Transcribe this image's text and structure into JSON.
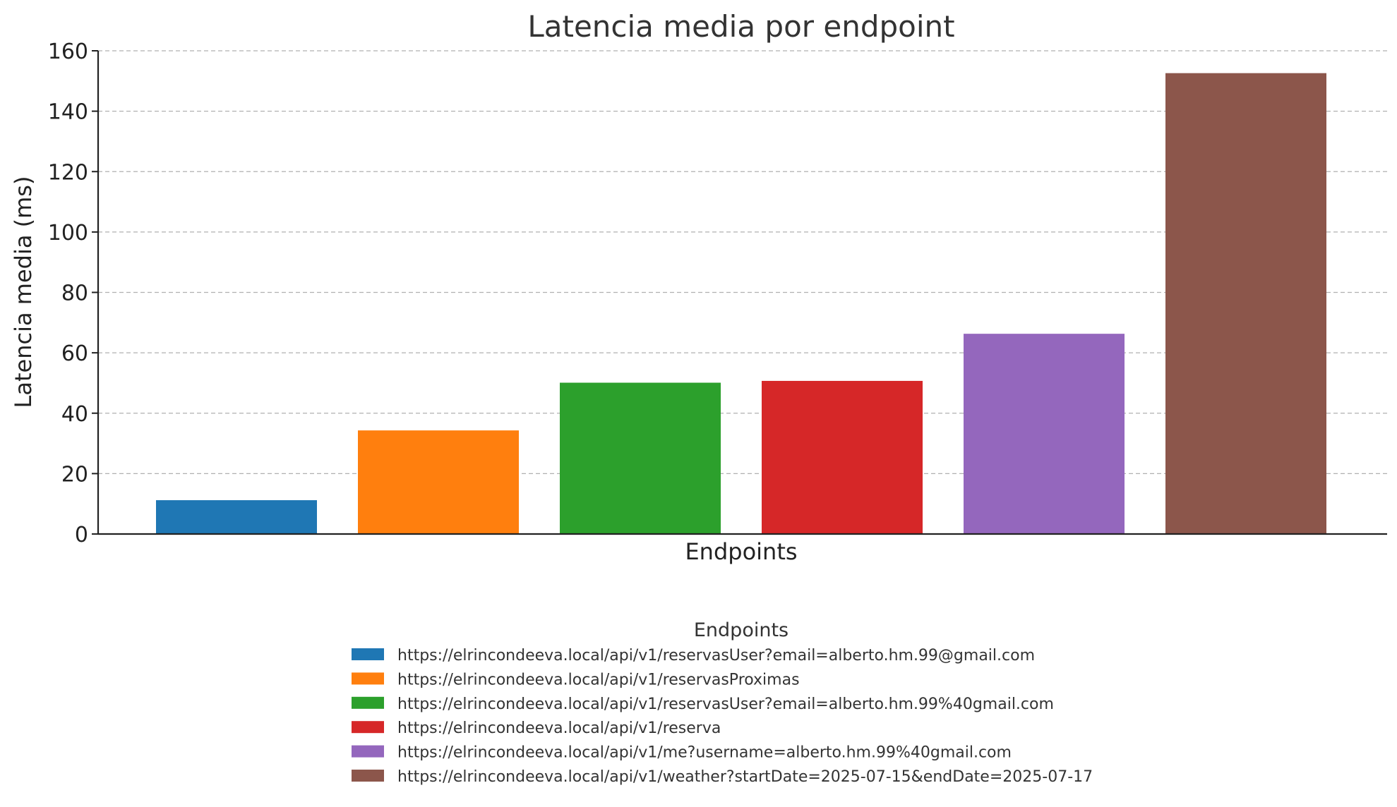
{
  "chart_data": {
    "type": "bar",
    "title": "Latencia media por endpoint",
    "xlabel": "Endpoints",
    "ylabel": "Latencia media (ms)",
    "ylim": [
      0,
      160
    ],
    "yticks": [
      0,
      20,
      40,
      60,
      80,
      100,
      120,
      140,
      160
    ],
    "grid": "y-dashed",
    "legend": {
      "title": "Endpoints",
      "placement": "bottom-center"
    },
    "categories": [
      "https://elrincondeeva.local/api/v1/reservasUser?email=alberto.hm.99@gmail.com",
      "https://elrincondeeva.local/api/v1/reservasProximas",
      "https://elrincondeeva.local/api/v1/reservasUser?email=alberto.hm.99%40gmail.com",
      "https://elrincondeeva.local/api/v1/reserva",
      "https://elrincondeeva.local/api/v1/me?username=alberto.hm.99%40gmail.com",
      "https://elrincondeeva.local/api/v1/weather?startDate=2025-07-15&endDate=2025-07-17"
    ],
    "values": [
      11.2,
      34.3,
      50.1,
      50.7,
      66.3,
      152.6
    ],
    "colors": [
      "#1f77b4",
      "#ff7f0e",
      "#2ca02c",
      "#d62728",
      "#9467bd",
      "#8c564b"
    ]
  }
}
